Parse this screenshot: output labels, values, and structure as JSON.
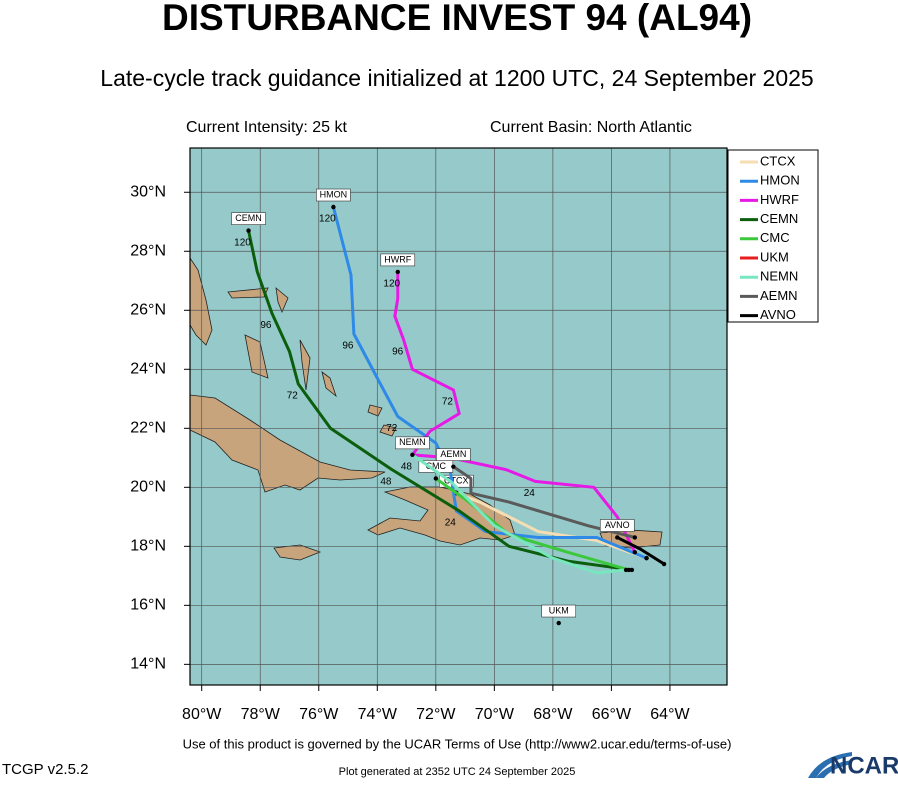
{
  "chart_data": {
    "type": "track",
    "title": "DISTURBANCE INVEST 94 (AL94)",
    "subtitle": "Late-cycle track guidance initialized at 1200 UTC, 24 September 2025",
    "intensity": "Current Intensity: 25 kt",
    "basin": "Current Basin: North Atlantic",
    "footer": "Use of this product is governed by the UCAR Terms of Use (http://www2.ucar.edu/terms-of-use)",
    "version": "TCGP v2.5.2",
    "generated": "Plot generated at 2352 UTC   24 September 2025",
    "logo": "NCAR",
    "xlim": [
      -80.4,
      -62.05
    ],
    "ylim": [
      13.3,
      31.5
    ],
    "xticks": [
      {
        "value": -80,
        "label": "80°W"
      },
      {
        "value": -78,
        "label": "78°W"
      },
      {
        "value": -76,
        "label": "76°W"
      },
      {
        "value": -74,
        "label": "74°W"
      },
      {
        "value": -72,
        "label": "72°W"
      },
      {
        "value": -70,
        "label": "70°W"
      },
      {
        "value": -68,
        "label": "68°W"
      },
      {
        "value": -66,
        "label": "66°W"
      },
      {
        "value": -64,
        "label": "64°W"
      }
    ],
    "yticks": [
      {
        "value": 14,
        "label": "14°N"
      },
      {
        "value": 16,
        "label": "16°N"
      },
      {
        "value": 18,
        "label": "18°N"
      },
      {
        "value": 20,
        "label": "20°N"
      },
      {
        "value": 22,
        "label": "22°N"
      },
      {
        "value": 24,
        "label": "24°N"
      },
      {
        "value": 26,
        "label": "26°N"
      },
      {
        "value": 28,
        "label": "28°N"
      },
      {
        "value": 30,
        "label": "30°N"
      }
    ],
    "grid": true,
    "background": "#96caca",
    "series": [
      {
        "name": "CTCX",
        "color": "#f5deb3",
        "x": [
          -64.8,
          -66.5,
          -68.5,
          -70.5,
          -71.3
        ],
        "y": [
          17.6,
          18.2,
          18.5,
          19.5,
          19.8
        ]
      },
      {
        "name": "HMON",
        "color": "#2e8ae6",
        "x": [
          -64.8,
          -66.5,
          -68.5,
          -70.3,
          -71.3,
          -71.5,
          -72.0,
          -73.3,
          -74.0,
          -74.8,
          -74.9,
          -75.5
        ],
        "y": [
          17.6,
          18.3,
          18.3,
          18.5,
          19.2,
          20.5,
          21.5,
          22.4,
          23.7,
          25.2,
          27.2,
          29.5
        ],
        "hour_labels": [
          null,
          null,
          null,
          null,
          "24",
          null,
          null,
          "72",
          null,
          "96",
          null,
          "120"
        ]
      },
      {
        "name": "HWRF",
        "color": "#e619e6",
        "x": [
          -65.2,
          -65.8,
          -66.6,
          -68.6,
          -69.6,
          -71.5,
          -72.8,
          -72.2,
          -71.2,
          -71.4,
          -72.8,
          -73.1,
          -73.4,
          -73.3,
          -73.3
        ],
        "y": [
          17.8,
          19.0,
          20.0,
          20.2,
          20.6,
          21.0,
          21.1,
          21.9,
          22.5,
          23.3,
          24.0,
          25.0,
          25.8,
          26.4,
          27.3
        ],
        "hour_labels": [
          null,
          null,
          null,
          "24",
          null,
          null,
          "48",
          null,
          null,
          "72",
          null,
          "96",
          null,
          null,
          "120"
        ]
      },
      {
        "name": "CEMN",
        "color": "#0b5e0b",
        "x": [
          -65.3,
          -67.5,
          -69.5,
          -71.2,
          -73.5,
          -75.6,
          -76.7,
          -77.0,
          -77.6,
          -78.1,
          -78.4
        ],
        "y": [
          17.2,
          17.5,
          18.0,
          19.2,
          20.6,
          22.0,
          23.5,
          24.6,
          25.9,
          27.3,
          28.7
        ],
        "hour_labels": [
          null,
          null,
          null,
          null,
          "48",
          null,
          "72",
          null,
          "96",
          null,
          "120"
        ]
      },
      {
        "name": "CMC",
        "color": "#3cc83c",
        "x": [
          -65.4,
          -67.5,
          -69.5,
          -71.0,
          -72.0
        ],
        "y": [
          17.2,
          17.8,
          18.4,
          19.6,
          20.3
        ]
      },
      {
        "name": "UKM",
        "color": "#e61e1e",
        "x": [
          -67.8
        ],
        "y": [
          15.4
        ]
      },
      {
        "name": "NEMN",
        "color": "#78e6be",
        "x": [
          -65.5,
          -66.5,
          -68.0,
          -70.0,
          -71.5,
          -72.8
        ],
        "y": [
          17.2,
          17.1,
          17.6,
          18.7,
          20.2,
          21.1
        ]
      },
      {
        "name": "AEMN",
        "color": "#5a5a5a",
        "x": [
          -65.2,
          -66.8,
          -69.5,
          -70.8,
          -70.8,
          -71.4
        ],
        "y": [
          18.3,
          18.7,
          19.5,
          19.8,
          20.3,
          20.7
        ]
      },
      {
        "name": "AVNO",
        "color": "#000000",
        "x": [
          -64.2,
          -65.0,
          -65.8
        ],
        "y": [
          17.4,
          17.9,
          18.3
        ]
      }
    ]
  }
}
